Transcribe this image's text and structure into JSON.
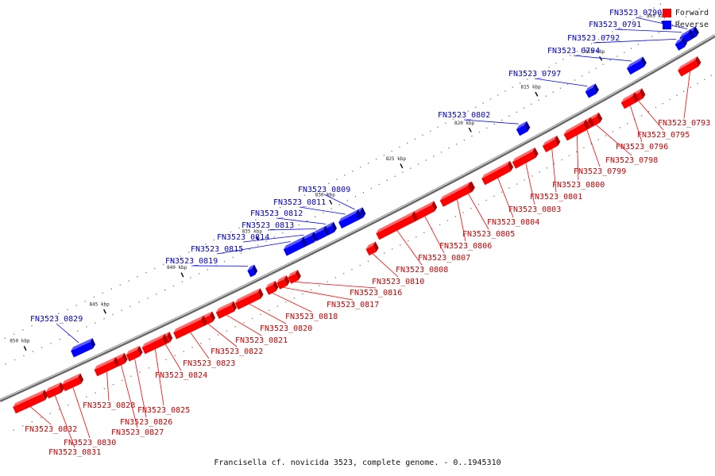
{
  "footer": "Francisella cf. novicida 3523, complete genome. - 0..1945310",
  "legend": [
    {
      "label": "Forward",
      "color": "#ff0000"
    },
    {
      "label": "Reverse",
      "color": "#0000ff"
    }
  ],
  "colors": {
    "forward": "#ff0000",
    "reverse": "#0000ff",
    "backbone": "#888888"
  },
  "ticks": [
    {
      "label": "805 kbp",
      "kbp": 805
    },
    {
      "label": "810 kbp",
      "kbp": 810
    },
    {
      "label": "815 kbp",
      "kbp": 815
    },
    {
      "label": "820 kbp",
      "kbp": 820
    },
    {
      "label": "825 kbp",
      "kbp": 825
    },
    {
      "label": "830 kbp",
      "kbp": 830
    },
    {
      "label": "835 kbp",
      "kbp": 835
    },
    {
      "label": "840 kbp",
      "kbp": 840
    },
    {
      "label": "845 kbp",
      "kbp": 845
    },
    {
      "label": "850 kbp",
      "kbp": 850
    }
  ],
  "genes": [
    {
      "name": "FN3523_0790",
      "strand": "reverse",
      "labelled": true
    },
    {
      "name": "FN3523_0791",
      "strand": "reverse",
      "labelled": true
    },
    {
      "name": "FN3523_0792",
      "strand": "reverse",
      "labelled": true
    },
    {
      "name": "FN3523_0793",
      "strand": "forward",
      "labelled": true
    },
    {
      "name": "FN3523_0794",
      "strand": "reverse",
      "labelled": true
    },
    {
      "name": "FN3523_0795",
      "strand": "forward",
      "labelled": true
    },
    {
      "name": "FN3523_0796",
      "strand": "forward",
      "labelled": true
    },
    {
      "name": "FN3523_0797",
      "strand": "reverse",
      "labelled": true
    },
    {
      "name": "FN3523_0798",
      "strand": "forward",
      "labelled": true
    },
    {
      "name": "FN3523_0799",
      "strand": "forward",
      "labelled": true
    },
    {
      "name": "FN3523_0800",
      "strand": "forward",
      "labelled": true
    },
    {
      "name": "FN3523_0801",
      "strand": "forward",
      "labelled": true
    },
    {
      "name": "FN3523_0802",
      "strand": "reverse",
      "labelled": true
    },
    {
      "name": "FN3523_0803",
      "strand": "forward",
      "labelled": true
    },
    {
      "name": "FN3523_0804",
      "strand": "forward",
      "labelled": true
    },
    {
      "name": "FN3523_0805",
      "strand": "forward",
      "labelled": true
    },
    {
      "name": "FN3523_0806",
      "strand": "forward",
      "labelled": true
    },
    {
      "name": "FN3523_0807",
      "strand": "forward",
      "labelled": true
    },
    {
      "name": "FN3523_0808",
      "strand": "forward",
      "labelled": true
    },
    {
      "name": "FN3523_0809",
      "strand": "reverse",
      "labelled": true
    },
    {
      "name": "FN3523_0810",
      "strand": "forward",
      "labelled": true
    },
    {
      "name": "FN3523_0811",
      "strand": "reverse",
      "labelled": true
    },
    {
      "name": "FN3523_0812",
      "strand": "reverse",
      "labelled": true
    },
    {
      "name": "FN3523_0813",
      "strand": "reverse",
      "labelled": true
    },
    {
      "name": "FN3523_0814",
      "strand": "reverse",
      "labelled": true
    },
    {
      "name": "FN3523_0815",
      "strand": "reverse",
      "labelled": true
    },
    {
      "name": "FN3523_0816",
      "strand": "forward",
      "labelled": true
    },
    {
      "name": "FN3523_0817",
      "strand": "forward",
      "labelled": true
    },
    {
      "name": "FN3523_0818",
      "strand": "forward",
      "labelled": true
    },
    {
      "name": "FN3523_0819",
      "strand": "reverse",
      "labelled": true
    },
    {
      "name": "FN3523_0820",
      "strand": "forward",
      "labelled": true
    },
    {
      "name": "FN3523_0821",
      "strand": "forward",
      "labelled": true
    },
    {
      "name": "FN3523_0822",
      "strand": "forward",
      "labelled": true
    },
    {
      "name": "FN3523_0823",
      "strand": "forward",
      "labelled": true
    },
    {
      "name": "FN3523_0824",
      "strand": "forward",
      "labelled": true
    },
    {
      "name": "FN3523_0825",
      "strand": "forward",
      "labelled": true
    },
    {
      "name": "FN3523_0826",
      "strand": "forward",
      "labelled": true
    },
    {
      "name": "FN3523_0827",
      "strand": "forward",
      "labelled": true
    },
    {
      "name": "FN3523_0828",
      "strand": "forward",
      "labelled": true
    },
    {
      "name": "FN3523_0829",
      "strand": "reverse",
      "labelled": true
    },
    {
      "name": "FN3523_0830",
      "strand": "forward",
      "labelled": true
    },
    {
      "name": "FN3523_0831",
      "strand": "forward",
      "labelled": true
    },
    {
      "name": "FN3523_0832",
      "strand": "forward",
      "labelled": true
    }
  ]
}
